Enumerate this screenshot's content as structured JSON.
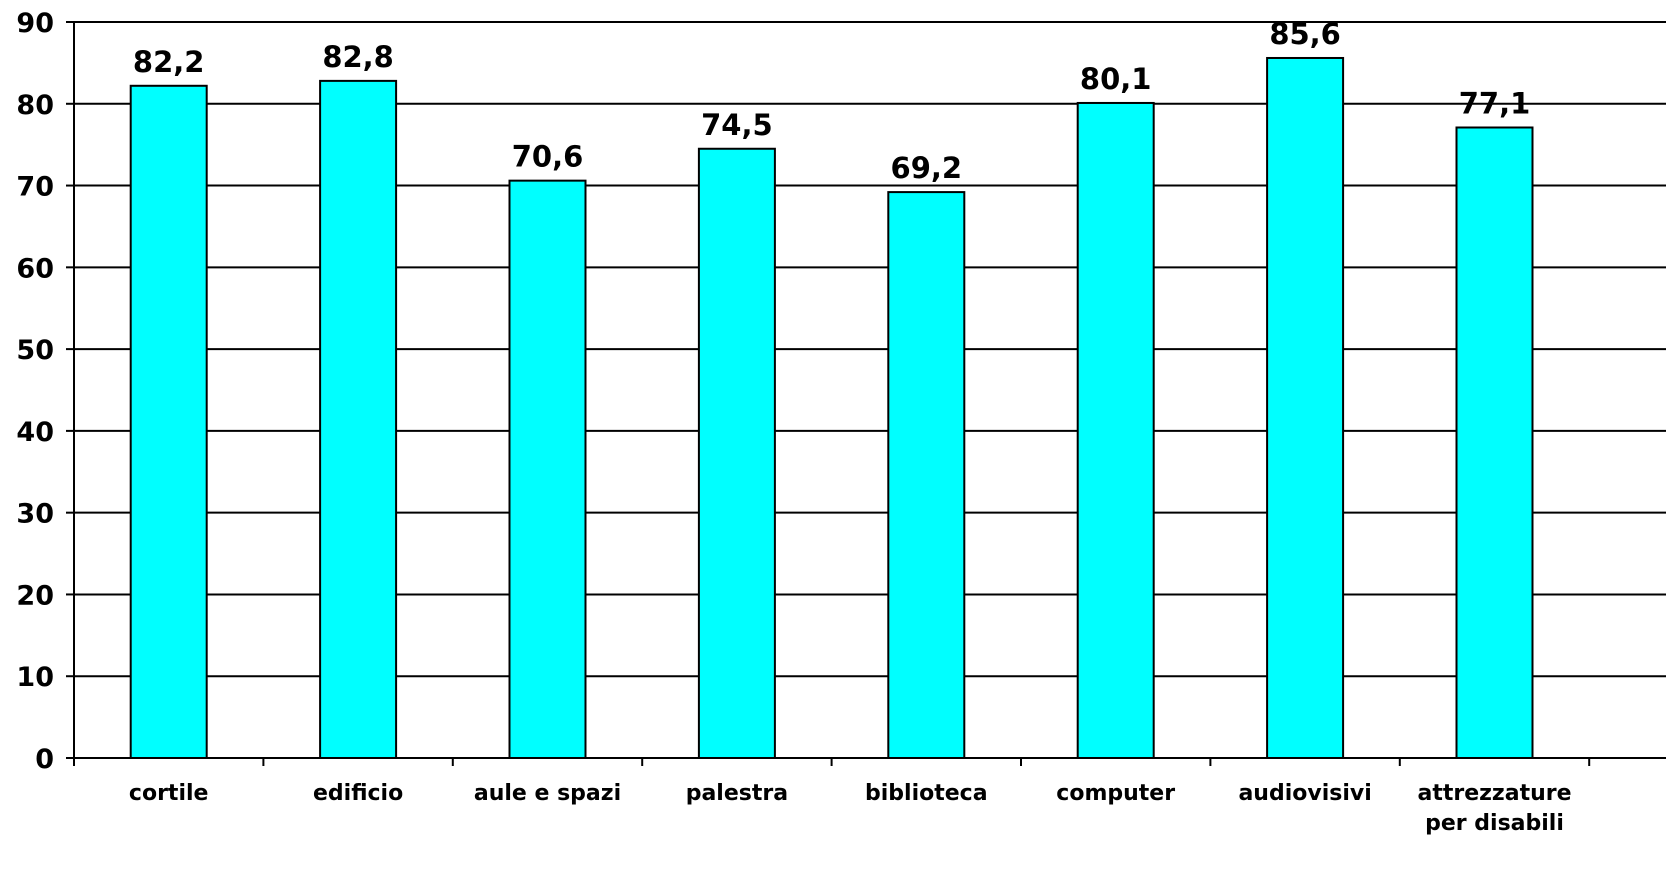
{
  "chart_data": {
    "type": "bar",
    "categories": [
      [
        "cortile"
      ],
      [
        "edificio"
      ],
      [
        "aule e spazi"
      ],
      [
        "palestra"
      ],
      [
        "biblioteca"
      ],
      [
        "computer"
      ],
      [
        "audiovisivi"
      ],
      [
        "attrezzature",
        "per disabili"
      ]
    ],
    "values": [
      82.2,
      82.8,
      70.6,
      74.5,
      69.2,
      80.1,
      85.6,
      77.1
    ],
    "value_labels": [
      "82,2",
      "82,8",
      "70,6",
      "74,5",
      "69,2",
      "80,1",
      "85,6",
      "77,1"
    ],
    "title": "",
    "xlabel": "",
    "ylabel": "",
    "ylim": [
      0,
      90
    ],
    "yticks": [
      0,
      10,
      20,
      30,
      40,
      50,
      60,
      70,
      80,
      90
    ],
    "grid": true,
    "bar_color": "#00FFFF",
    "edge_color": "#000000"
  }
}
